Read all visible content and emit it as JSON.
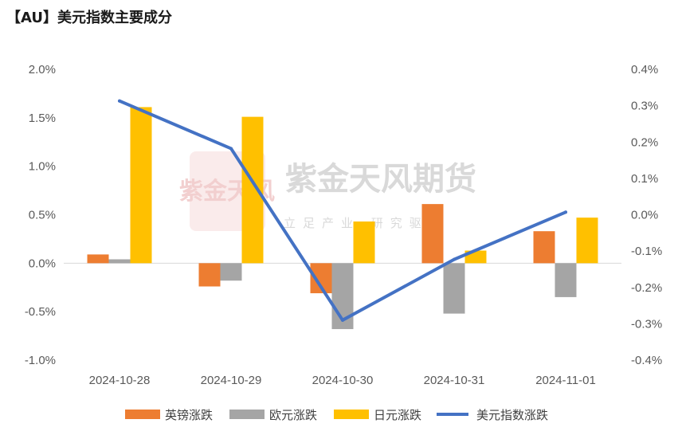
{
  "title": "【AU】美元指数主要成分",
  "watermark": {
    "name": "紫金天风期货",
    "slogan": "立足产业 研究驱动",
    "seal_text": "紫金天风"
  },
  "colors": {
    "gbp": "#ED7D31",
    "eur": "#A5A5A5",
    "jpy": "#FFC000",
    "dxy": "#4472C4",
    "watermark": "#d9d9d9",
    "seal": "#f2c9c9"
  },
  "chart_data": {
    "type": "bar",
    "categories": [
      "2024-10-28",
      "2024-10-29",
      "2024-10-30",
      "2024-10-31",
      "2024-11-01"
    ],
    "series": [
      {
        "name": "英镑涨跌",
        "type": "bar",
        "axis": "left",
        "values": [
          0.09,
          -0.24,
          -0.31,
          0.61,
          0.33
        ]
      },
      {
        "name": "欧元涨跌",
        "type": "bar",
        "axis": "left",
        "values": [
          0.04,
          -0.18,
          -0.68,
          -0.52,
          -0.35
        ]
      },
      {
        "name": "日元涨跌",
        "type": "bar",
        "axis": "left",
        "values": [
          1.61,
          1.51,
          0.43,
          0.13,
          0.47
        ]
      },
      {
        "name": "美元指数涨跌",
        "type": "line",
        "axis": "right",
        "values": [
          0.313,
          0.182,
          -0.29,
          -0.123,
          0.007
        ]
      }
    ],
    "left_axis": {
      "min": -1.0,
      "max": 2.0,
      "step": 0.5,
      "ticks": [
        "-1.0%",
        "-0.5%",
        "0.0%",
        "0.5%",
        "1.0%",
        "1.5%",
        "2.0%"
      ]
    },
    "right_axis": {
      "min": -0.4,
      "max": 0.4,
      "step": 0.1,
      "ticks": [
        "-0.4%",
        "-0.3%",
        "-0.2%",
        "-0.1%",
        "0.0%",
        "0.1%",
        "0.2%",
        "0.3%",
        "0.4%"
      ]
    },
    "unit": "%",
    "grid": false,
    "legend_position": "bottom"
  }
}
